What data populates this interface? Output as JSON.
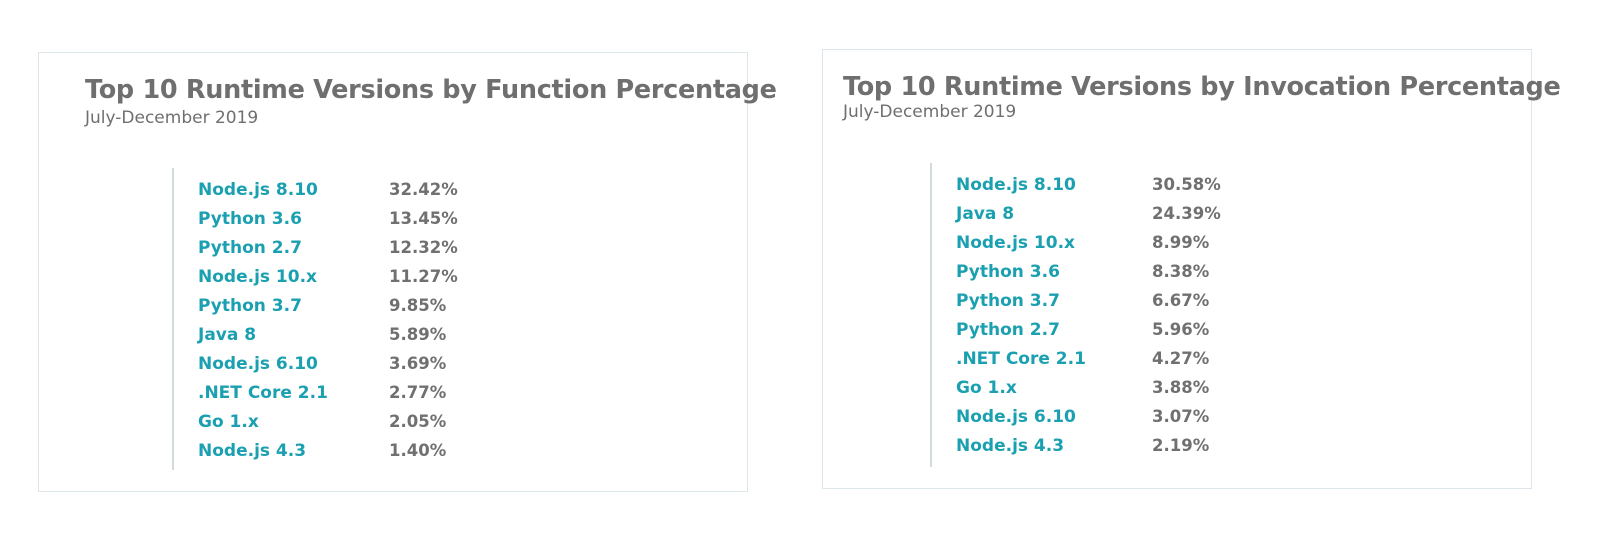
{
  "chart_data": [
    {
      "type": "table",
      "title": "Top 10 Runtime Versions by Function Percentage",
      "subtitle": "July-December 2019",
      "categories": [
        "Node.js 8.10",
        "Python 3.6",
        "Python 2.7",
        "Node.js 10.x",
        "Python 3.7",
        "Java 8",
        "Node.js 6.10",
        ".NET Core 2.1",
        "Go 1.x",
        "Node.js 4.3"
      ],
      "values": [
        32.42,
        13.45,
        12.32,
        11.27,
        9.85,
        5.89,
        3.69,
        2.77,
        2.05,
        1.4
      ],
      "value_labels": [
        "32.42%",
        "13.45%",
        "12.32%",
        "11.27%",
        "9.85%",
        "5.89%",
        "3.69%",
        "2.77%",
        "2.05%",
        "1.40%"
      ]
    },
    {
      "type": "table",
      "title": "Top 10 Runtime Versions by Invocation Percentage",
      "subtitle": "July-December 2019",
      "categories": [
        "Node.js 8.10",
        "Java 8",
        "Node.js 10.x",
        "Python 3.6",
        "Python 3.7",
        "Python 2.7",
        ".NET Core 2.1",
        "Go 1.x",
        "Node.js 6.10",
        "Node.js 4.3"
      ],
      "values": [
        30.58,
        24.39,
        8.99,
        8.38,
        6.67,
        5.96,
        4.27,
        3.88,
        3.07,
        2.19
      ],
      "value_labels": [
        "30.58%",
        "24.39%",
        "8.99%",
        "8.38%",
        "6.67%",
        "5.96%",
        "4.27%",
        "3.88%",
        "3.07%",
        "2.19%"
      ]
    }
  ],
  "colors": {
    "label": "#1aa0b0",
    "value": "#707070",
    "title": "#6f6f6f",
    "border": "#dde6ea"
  }
}
